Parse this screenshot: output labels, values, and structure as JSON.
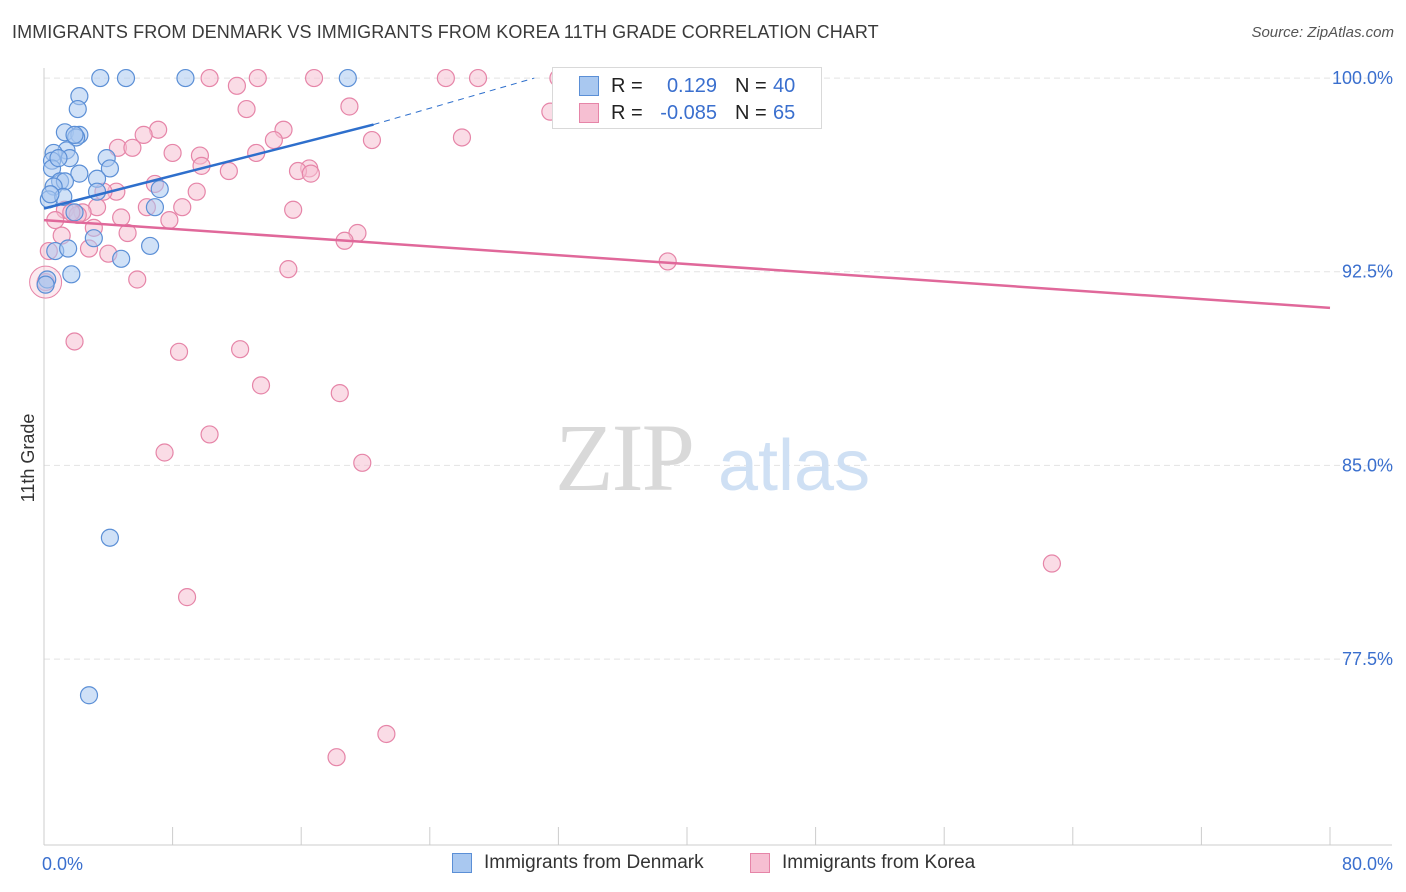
{
  "chart_data": {
    "type": "scatter",
    "title": "IMMIGRANTS FROM DENMARK VS IMMIGRANTS FROM KOREA 11TH GRADE CORRELATION CHART",
    "source": "Source: ZipAtlas.com",
    "ylabel": "11th Grade",
    "xlabel": "",
    "xlim": [
      0,
      80
    ],
    "ylim": [
      70.3,
      100.7
    ],
    "x_tick_labels": [
      "0.0%",
      "80.0%"
    ],
    "y_ticks": [
      100.0,
      92.5,
      85.0,
      77.5
    ],
    "y_tick_labels": [
      "100.0%",
      "92.5%",
      "85.0%",
      "77.5%"
    ],
    "grid": true,
    "watermark": {
      "zip": "ZIP",
      "atlas": "atlas"
    },
    "legend_position": "top-center",
    "colors": {
      "denmark_fill": "#a9c8f0",
      "denmark_stroke": "#5b8fd6",
      "denmark_line": "#2e6fcc",
      "korea_fill": "#f6bfd2",
      "korea_stroke": "#e685a8",
      "korea_line": "#e0689a",
      "tick_text": "#3a6fce"
    },
    "series": [
      {
        "name": "Immigrants from Denmark",
        "R": "0.129",
        "N": "40",
        "trend": {
          "x0": 0,
          "y0": 94.95,
          "x1": 20.5,
          "y1": 98.2,
          "dash_to_x": 30.5,
          "dash_to_y": 100.0
        },
        "points": [
          [
            3.5,
            100
          ],
          [
            5.1,
            100
          ],
          [
            8.8,
            100
          ],
          [
            18.9,
            100
          ],
          [
            2.2,
            99.3
          ],
          [
            2.1,
            98.8
          ],
          [
            1.3,
            97.9
          ],
          [
            2.2,
            97.8
          ],
          [
            2.0,
            97.7
          ],
          [
            1.4,
            97.2
          ],
          [
            0.6,
            97.1
          ],
          [
            1.6,
            96.9
          ],
          [
            0.5,
            96.8
          ],
          [
            3.9,
            96.9
          ],
          [
            4.1,
            96.5
          ],
          [
            0.5,
            96.5
          ],
          [
            2.2,
            96.3
          ],
          [
            1.0,
            96.0
          ],
          [
            3.3,
            96.1
          ],
          [
            1.3,
            96.0
          ],
          [
            0.6,
            95.8
          ],
          [
            7.2,
            95.7
          ],
          [
            3.3,
            95.6
          ],
          [
            0.3,
            95.3
          ],
          [
            1.2,
            95.4
          ],
          [
            6.9,
            95.0
          ],
          [
            1.9,
            94.8
          ],
          [
            3.1,
            93.8
          ],
          [
            6.6,
            93.5
          ],
          [
            0.7,
            93.3
          ],
          [
            1.5,
            93.4
          ],
          [
            4.8,
            93.0
          ],
          [
            1.7,
            92.4
          ],
          [
            0.2,
            92.2
          ],
          [
            0.1,
            92.0
          ],
          [
            4.1,
            82.2
          ],
          [
            2.8,
            76.1
          ],
          [
            0.4,
            95.5
          ],
          [
            1.9,
            97.8
          ],
          [
            0.9,
            96.9
          ]
        ]
      },
      {
        "name": "Immigrants from Korea",
        "R": "-0.085",
        "N": "65",
        "trend": {
          "x0": 0,
          "y0": 94.5,
          "x1": 80,
          "y1": 91.1
        },
        "points": [
          [
            10.3,
            100
          ],
          [
            13.3,
            100
          ],
          [
            16.8,
            100
          ],
          [
            25.0,
            100
          ],
          [
            27.0,
            100
          ],
          [
            12.0,
            99.7
          ],
          [
            19.0,
            98.9
          ],
          [
            31.5,
            98.7
          ],
          [
            12.6,
            98.8
          ],
          [
            7.1,
            98.0
          ],
          [
            14.9,
            98.0
          ],
          [
            6.2,
            97.8
          ],
          [
            14.3,
            97.6
          ],
          [
            20.4,
            97.6
          ],
          [
            26.0,
            97.7
          ],
          [
            4.6,
            97.3
          ],
          [
            5.5,
            97.3
          ],
          [
            8.0,
            97.1
          ],
          [
            9.7,
            97.0
          ],
          [
            13.2,
            97.1
          ],
          [
            9.8,
            96.6
          ],
          [
            16.5,
            96.5
          ],
          [
            11.5,
            96.4
          ],
          [
            15.8,
            96.4
          ],
          [
            16.6,
            96.3
          ],
          [
            6.9,
            95.9
          ],
          [
            9.5,
            95.6
          ],
          [
            4.5,
            95.6
          ],
          [
            3.7,
            95.6
          ],
          [
            6.4,
            95.0
          ],
          [
            8.6,
            95.0
          ],
          [
            15.5,
            94.9
          ],
          [
            3.3,
            95.0
          ],
          [
            1.3,
            94.9
          ],
          [
            2.4,
            94.8
          ],
          [
            2.1,
            94.7
          ],
          [
            0.7,
            94.5
          ],
          [
            4.8,
            94.6
          ],
          [
            7.8,
            94.5
          ],
          [
            3.1,
            94.2
          ],
          [
            5.2,
            94.0
          ],
          [
            19.5,
            94.0
          ],
          [
            1.1,
            93.9
          ],
          [
            18.7,
            93.7
          ],
          [
            2.8,
            93.4
          ],
          [
            4.0,
            93.2
          ],
          [
            0.3,
            93.3
          ],
          [
            38.8,
            92.9
          ],
          [
            15.2,
            92.6
          ],
          [
            5.8,
            92.2
          ],
          [
            0.1,
            92.1
          ],
          [
            1.9,
            89.8
          ],
          [
            8.4,
            89.4
          ],
          [
            12.2,
            89.5
          ],
          [
            13.5,
            88.1
          ],
          [
            18.4,
            87.8
          ],
          [
            10.3,
            86.2
          ],
          [
            7.5,
            85.5
          ],
          [
            19.8,
            85.1
          ],
          [
            62.7,
            81.2
          ],
          [
            8.9,
            79.9
          ],
          [
            21.3,
            74.6
          ],
          [
            18.2,
            73.7
          ],
          [
            32.0,
            100
          ],
          [
            1.7,
            94.8
          ]
        ]
      }
    ]
  },
  "legend": {
    "r_label": "R =",
    "n_label": "N =",
    "denmark": {
      "r": "0.129",
      "n": "40"
    },
    "korea": {
      "r": "-0.085",
      "n": "65"
    }
  },
  "bottom_legend": {
    "denmark": "Immigrants from Denmark",
    "korea": "Immigrants from Korea"
  }
}
